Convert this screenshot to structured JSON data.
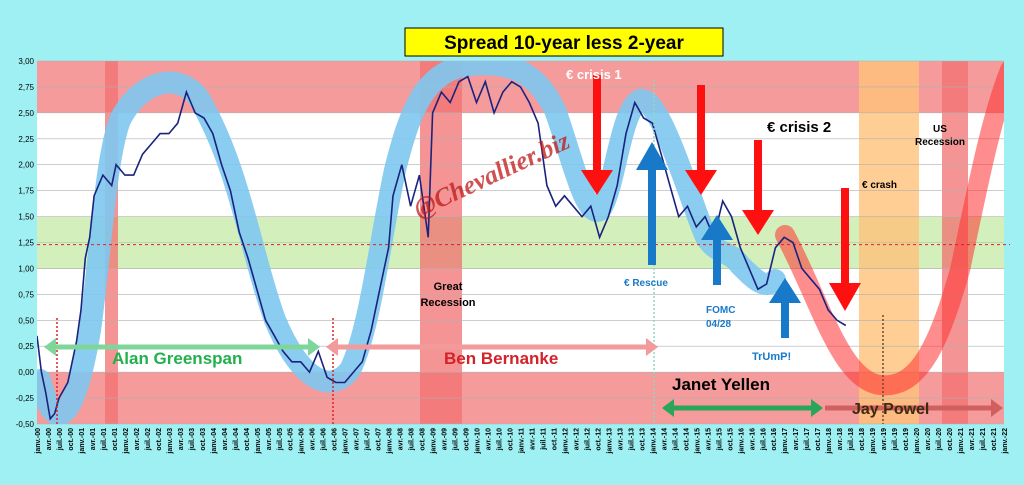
{
  "chart_data": {
    "type": "line",
    "title": "Spread 10-year less 2-year",
    "watermark": "@Chevallier.biz",
    "ylim": [
      -0.5,
      3.0
    ],
    "yticks": [
      "3,00",
      "2,75",
      "2,50",
      "2,25",
      "2,00",
      "1,75",
      "1,50",
      "1,25",
      "1,00",
      "0,75",
      "0,50",
      "0,25",
      "0,00",
      "-0,25",
      "-0,50"
    ],
    "xticks": [
      "janv.-00",
      "avr.-00",
      "juil.-00",
      "oct.-00",
      "janv.-01",
      "avr.-01",
      "juil.-01",
      "oct.-01",
      "janv.-02",
      "avr.-02",
      "juil.-02",
      "oct.-02",
      "janv.-03",
      "avr.-03",
      "juil.-03",
      "oct.-03",
      "janv.-04",
      "avr.-04",
      "juil.-04",
      "oct.-04",
      "janv.-05",
      "avr.-05",
      "juil.-05",
      "oct.-05",
      "janv.-06",
      "avr.-06",
      "juil.-06",
      "oct.-06",
      "janv.-07",
      "avr.-07",
      "juil.-07",
      "oct.-07",
      "janv.-08",
      "avr.-08",
      "juil.-08",
      "oct.-08",
      "janv.-09",
      "avr.-09",
      "juil.-09",
      "oct.-09",
      "janv.-10",
      "avr.-10",
      "juil.-10",
      "oct.-10",
      "janv.-11",
      "avr.-11",
      "juil.-11",
      "oct.-11",
      "janv.-12",
      "avr.-12",
      "juil.-12",
      "oct.-12",
      "janv.-13",
      "avr.-13",
      "juil.-13",
      "oct.-13",
      "janv.-14",
      "avr.-14",
      "juil.-14",
      "oct.-14",
      "janv.-15",
      "avr.-15",
      "juil.-15",
      "oct.-15",
      "janv.-16",
      "avr.-16",
      "juil.-16",
      "oct.-16",
      "janv.-17",
      "avr.-17",
      "juil.-17",
      "oct.-17",
      "janv.-18",
      "avr.-18",
      "juil.-18",
      "oct.-18",
      "janv.-19",
      "avr.-19",
      "juil.-19",
      "oct.-19",
      "janv.-20",
      "avr.-20",
      "juil.-20",
      "oct.-20",
      "janv.-21",
      "avr.-21",
      "juil.-21",
      "oct.-21",
      "janv.-22"
    ],
    "x_start": 2000.0,
    "x_end": 2022.0,
    "series": [
      {
        "name": "",
        "x": [
          2000.0,
          2000.1,
          2000.2,
          2000.3,
          2000.4,
          2000.5,
          2000.7,
          2000.9,
          2001.0,
          2001.1,
          2001.2,
          2001.3,
          2001.5,
          2001.7,
          2001.8,
          2002.0,
          2002.2,
          2002.4,
          2002.6,
          2002.8,
          2003.0,
          2003.2,
          2003.4,
          2003.5,
          2003.6,
          2003.8,
          2004.0,
          2004.2,
          2004.4,
          2004.6,
          2004.8,
          2005.0,
          2005.2,
          2005.4,
          2005.6,
          2005.8,
          2006.0,
          2006.2,
          2006.4,
          2006.6,
          2006.8,
          2007.0,
          2007.2,
          2007.4,
          2007.6,
          2007.8,
          2008.0,
          2008.1,
          2008.3,
          2008.5,
          2008.7,
          2008.9,
          2009.0,
          2009.2,
          2009.4,
          2009.6,
          2009.8,
          2010.0,
          2010.2,
          2010.4,
          2010.6,
          2010.8,
          2011.0,
          2011.2,
          2011.4,
          2011.6,
          2011.8,
          2012.0,
          2012.2,
          2012.4,
          2012.6,
          2012.8,
          2013.0,
          2013.2,
          2013.4,
          2013.6,
          2013.8,
          2014.0,
          2014.2,
          2014.4,
          2014.6,
          2014.8,
          2015.0,
          2015.2,
          2015.4,
          2015.6,
          2015.8,
          2016.0,
          2016.2,
          2016.4,
          2016.6,
          2016.8,
          2017.0,
          2017.2,
          2017.4,
          2017.6,
          2017.8,
          2018.0,
          2018.2,
          2018.4
        ],
        "values": [
          0.35,
          0.0,
          -0.2,
          -0.45,
          -0.4,
          -0.25,
          -0.1,
          0.3,
          0.6,
          1.1,
          1.3,
          1.7,
          1.9,
          1.8,
          2.0,
          1.9,
          1.9,
          2.1,
          2.2,
          2.3,
          2.3,
          2.4,
          2.7,
          2.6,
          2.5,
          2.45,
          2.3,
          2.0,
          1.75,
          1.35,
          1.1,
          0.8,
          0.5,
          0.35,
          0.2,
          0.1,
          0.1,
          0.0,
          0.2,
          -0.05,
          -0.1,
          -0.1,
          0.0,
          0.1,
          0.4,
          0.8,
          1.2,
          1.7,
          2.0,
          1.6,
          1.9,
          1.3,
          2.5,
          2.7,
          2.6,
          2.8,
          2.85,
          2.6,
          2.8,
          2.5,
          2.7,
          2.8,
          2.75,
          2.6,
          2.4,
          1.8,
          1.6,
          1.7,
          1.6,
          1.5,
          1.6,
          1.3,
          1.5,
          1.8,
          2.3,
          2.6,
          2.45,
          2.4,
          2.1,
          1.8,
          1.5,
          1.6,
          1.4,
          1.5,
          1.3,
          1.65,
          1.5,
          1.2,
          1.0,
          0.8,
          0.85,
          1.2,
          1.3,
          1.25,
          1.0,
          0.9,
          0.8,
          0.6,
          0.5,
          0.45
        ]
      }
    ],
    "horizontal_reference": 1.23,
    "labels": {
      "crisis1": "€ crisis 1",
      "crisis2": "€ crisis 2",
      "rescue": "€ Rescue",
      "fomc": "FOMC\n04/28",
      "trump": "TrUmP!",
      "crash": "€ crash",
      "us_recession": "US\nRecession",
      "great_recession": "Great\nRecession",
      "greenspan": "Alan  Greenspan",
      "bernanke": "Ben  Bernanke",
      "yellen": "Janet  Yellen",
      "powel": "Jay Powel"
    },
    "colors": {
      "background": "#9ff0f2",
      "red_zone": "#f59b9b",
      "white_zone": "#ffffff",
      "green_zone": "#d3f0bc",
      "line": "#1a237e",
      "cycle": "#7ec8ef",
      "red_arrow": "#ff1010",
      "blue_arrow": "#1879c8",
      "green_text": "#22b04c",
      "red_text": "#d2222a",
      "orange_zone": "#ffc27a"
    }
  }
}
